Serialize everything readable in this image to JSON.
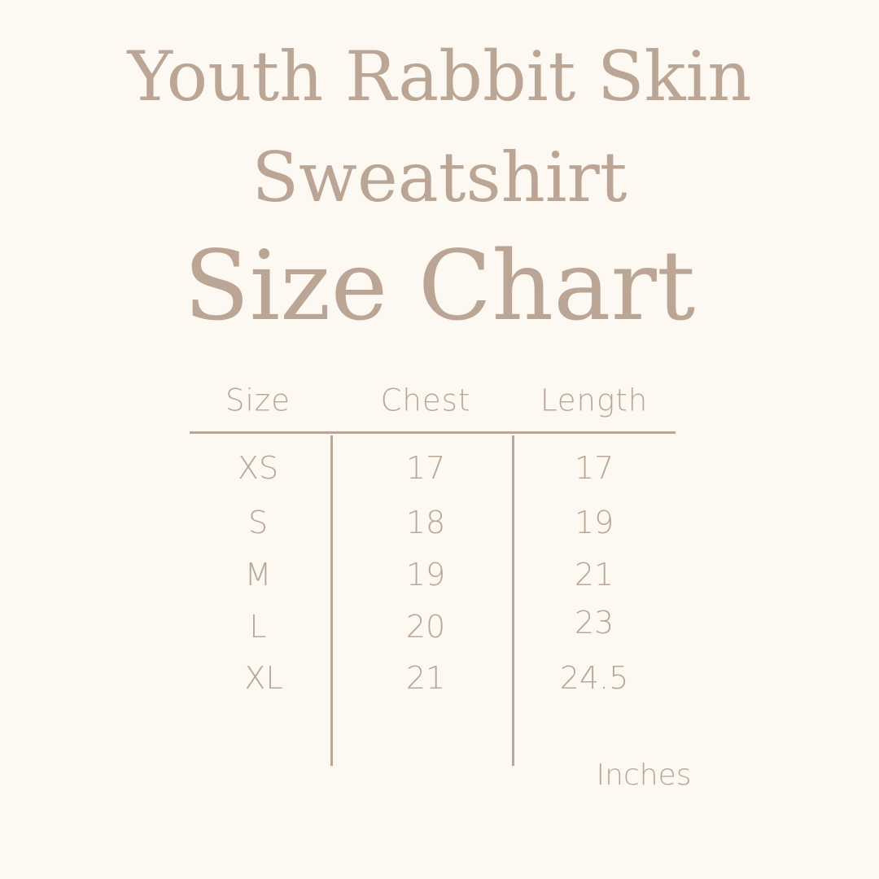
{
  "title": {
    "line1": "Youth Rabbit Skin",
    "line2": "Sweatshirt",
    "line3": "Size Chart"
  },
  "table": {
    "headers": [
      "Size",
      "Chest",
      "Length"
    ],
    "rows": [
      [
        "XS",
        "17",
        "17"
      ],
      [
        "S",
        "18",
        "19"
      ],
      [
        "M",
        "19",
        "21"
      ],
      [
        "L",
        "20",
        "23"
      ],
      [
        "XL",
        "21",
        "24.5"
      ]
    ]
  },
  "unit": "Inches",
  "colors": {
    "background": "#fdf8f1",
    "text": "#bba695"
  }
}
